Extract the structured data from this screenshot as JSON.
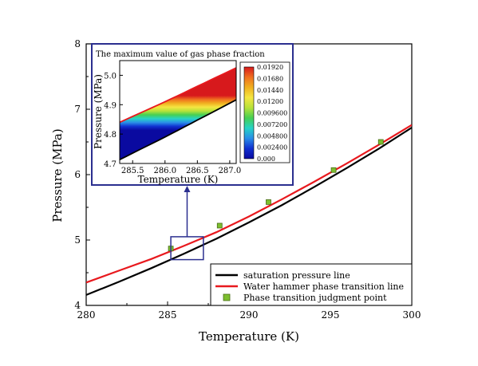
{
  "chart_data": {
    "type": "line",
    "xlabel": "Temperature (K)",
    "ylabel": "Pressure (MPa)",
    "xlim": [
      280,
      300
    ],
    "ylim": [
      4,
      8
    ],
    "xticks": [
      "280",
      "285",
      "290",
      "295",
      "300"
    ],
    "yticks": [
      "4",
      "5",
      "6",
      "7",
      "8"
    ],
    "grid": false,
    "legend_position": "bottom-right",
    "series": [
      {
        "name": "saturation pressure line",
        "type": "line",
        "color": "#000000",
        "x": [
          280,
          282,
          284,
          286,
          288,
          290,
          292,
          294,
          296,
          298,
          300
        ],
        "y": [
          4.16,
          4.36,
          4.57,
          4.79,
          5.02,
          5.27,
          5.53,
          5.81,
          6.1,
          6.4,
          6.72
        ]
      },
      {
        "name": "Water hammer phase transition line",
        "type": "line",
        "color": "#e8191e",
        "x": [
          280,
          282,
          284,
          286,
          288,
          290,
          292,
          294,
          296,
          298,
          300
        ],
        "y": [
          4.35,
          4.53,
          4.71,
          4.91,
          5.12,
          5.36,
          5.62,
          5.89,
          6.17,
          6.46,
          6.76
        ]
      },
      {
        "name": "Phase transition judgment point",
        "type": "scatter",
        "color": "#7dbf2f",
        "x": [
          285.2,
          288.2,
          291.2,
          295.2,
          298.1
        ],
        "y": [
          4.87,
          5.22,
          5.58,
          6.07,
          6.5
        ]
      }
    ],
    "zoom_box": {
      "xlim": [
        285.2,
        287.2
      ],
      "ylim": [
        4.7,
        5.05
      ]
    },
    "inset": {
      "title": "The maximum value of gas phase fraction",
      "xlabel": "Temperature (K)",
      "ylabel": "Pressure (MPa)",
      "xlim": [
        285.3,
        287.1
      ],
      "ylim": [
        4.7,
        5.05
      ],
      "xticks": [
        "285.5",
        "286.0",
        "286.5",
        "287.0"
      ],
      "yticks": [
        "4.7",
        "4.8",
        "4.9",
        "5.0"
      ],
      "border_color": "#2b2f8f",
      "colorbar": {
        "labels": [
          "0.01920",
          "0.01680",
          "0.01440",
          "0.01200",
          "0.009600",
          "0.007200",
          "0.004800",
          "0.002400",
          "0.000"
        ],
        "colors": [
          "#d7191c",
          "#f07020",
          "#f0b020",
          "#f5e642",
          "#b8e23a",
          "#46cf53",
          "#27d3c6",
          "#2a8ee8",
          "#1030d0",
          "#0a0aa0"
        ]
      }
    }
  }
}
